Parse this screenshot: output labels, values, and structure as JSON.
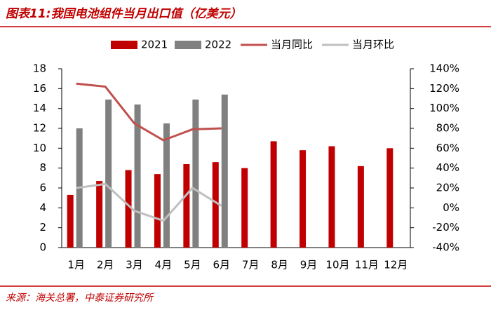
{
  "chart_data": {
    "type": "bar",
    "title": "图表11:我国电池组件当月出口值（亿美元）",
    "source": "来源：海关总署，中泰证券研究所",
    "categories": [
      "1月",
      "2月",
      "3月",
      "4月",
      "5月",
      "6月",
      "7月",
      "8月",
      "9月",
      "10月",
      "11月",
      "12月"
    ],
    "series": [
      {
        "name": "2021",
        "type": "bar",
        "color": "#c00000",
        "values": [
          5.3,
          6.7,
          7.8,
          7.4,
          8.4,
          8.6,
          8.0,
          10.7,
          9.8,
          10.2,
          8.2,
          10.0
        ]
      },
      {
        "name": "2022",
        "type": "bar",
        "color": "#808080",
        "values": [
          12.0,
          14.9,
          14.4,
          12.5,
          14.9,
          15.4,
          null,
          null,
          null,
          null,
          null,
          null
        ]
      },
      {
        "name": "当月同比",
        "type": "line",
        "axis": "y2",
        "color": "#c0504d",
        "values": [
          125,
          122,
          85,
          68,
          79,
          80,
          null,
          null,
          null,
          null,
          null,
          null
        ]
      },
      {
        "name": "当月环比",
        "type": "line",
        "axis": "y2",
        "color": "#bfbfbf",
        "values": [
          20,
          24,
          -3,
          -13,
          20,
          2,
          null,
          null,
          null,
          null,
          null,
          null
        ]
      }
    ],
    "ylim": [
      0,
      18
    ],
    "yticks": [
      0,
      2,
      4,
      6,
      8,
      10,
      12,
      14,
      16,
      18
    ],
    "y2lim": [
      -40,
      140
    ],
    "y2ticks": [
      {
        "value": -40,
        "label": "-40%"
      },
      {
        "value": -20,
        "label": "-20%"
      },
      {
        "value": 0,
        "label": "0%"
      },
      {
        "value": 20,
        "label": "20%"
      },
      {
        "value": 40,
        "label": "40%"
      },
      {
        "value": 60,
        "label": "60%"
      },
      {
        "value": 80,
        "label": "80%"
      },
      {
        "value": 100,
        "label": "100%"
      },
      {
        "value": 120,
        "label": "120%"
      },
      {
        "value": 140,
        "label": "140%"
      }
    ],
    "grid": false
  }
}
